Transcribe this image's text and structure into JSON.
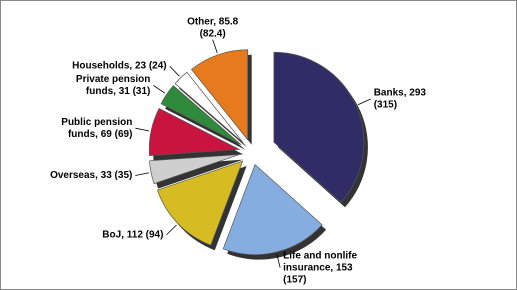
{
  "chart_data": {
    "type": "pie",
    "values": [
      293,
      153,
      112,
      33,
      69,
      31,
      23,
      85.8
    ],
    "value_labels": [
      [
        "Banks, 293",
        "(315)"
      ],
      [
        "Life and nonlife",
        "insurance, 153",
        "(157)"
      ],
      [
        "BoJ, 112 (94)"
      ],
      [
        "Overseas, 33 (35)"
      ],
      [
        "Public pension",
        "funds, 69 (69)"
      ],
      [
        "Private pension",
        "funds, 31 (31)"
      ],
      [
        "Households, 23 (24)"
      ],
      [
        "Other, 85.8",
        "(82.4)"
      ]
    ],
    "colors": [
      "#302c66",
      "#86ade0",
      "#d6bb22",
      "#cfcfcf",
      "#c8143e",
      "#2f8a3c",
      "#ffffff",
      "#e77a1c"
    ]
  }
}
